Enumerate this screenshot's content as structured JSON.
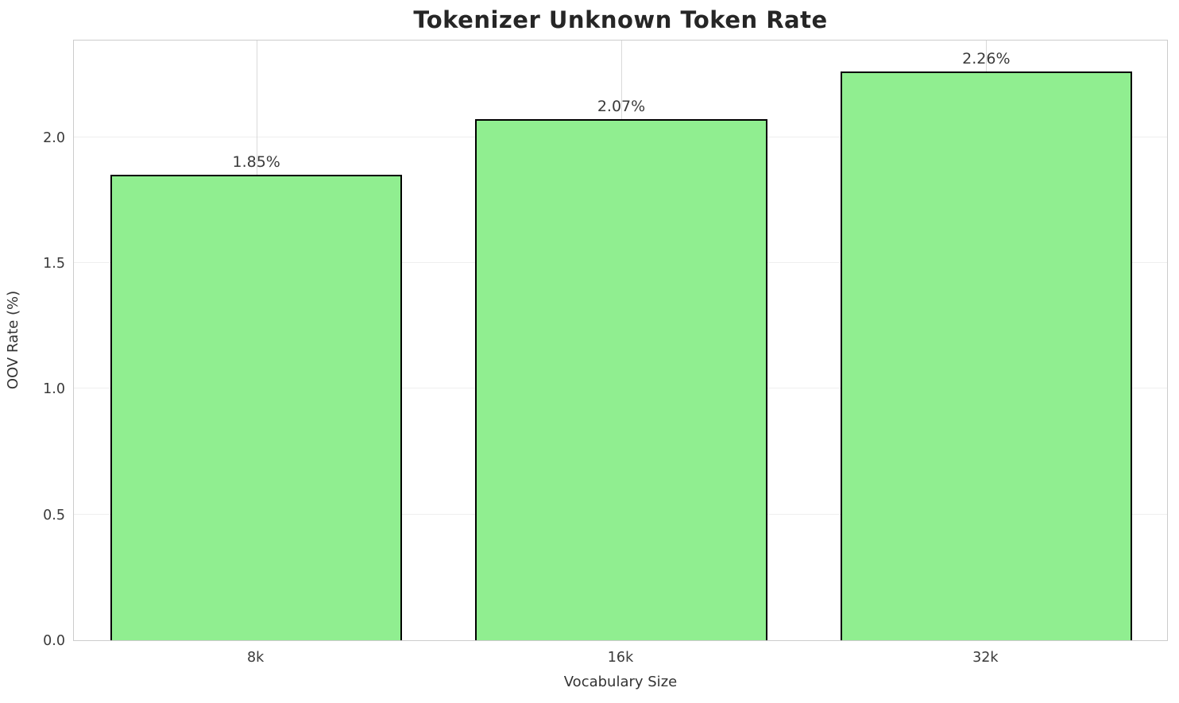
{
  "chart_data": {
    "type": "bar",
    "title": "Tokenizer Unknown Token Rate",
    "xlabel": "Vocabulary Size",
    "ylabel": "OOV Rate (%)",
    "categories": [
      "8k",
      "16k",
      "32k"
    ],
    "values": [
      1.85,
      2.07,
      2.26
    ],
    "value_labels": [
      "1.85%",
      "2.07%",
      "2.26%"
    ],
    "ytick_values": [
      0.0,
      0.5,
      1.0,
      1.5,
      2.0
    ],
    "ytick_labels": [
      "0.0",
      "0.5",
      "1.0",
      "1.5",
      "2.0"
    ],
    "ylim": [
      0,
      2.39
    ],
    "grid": "on",
    "legend_position": "none",
    "bar_width_fraction": 0.8,
    "bar_color": "#90EE90",
    "bar_edge_color": "#000000"
  },
  "colors": {
    "background": "#ffffff",
    "title_text": "#262626",
    "tick_text": "#3a3a3a",
    "axis_label_text": "#333333",
    "spine": "#cccccc",
    "grid_vertical": "#d9d9d9",
    "grid_horizontal": "#efefef"
  }
}
